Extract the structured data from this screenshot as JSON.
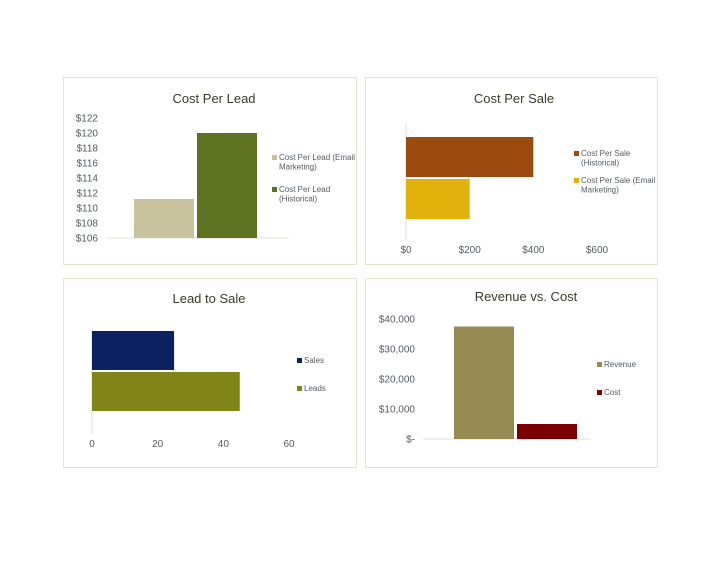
{
  "chart_data": [
    {
      "id": "cpl",
      "type": "bar",
      "title": "Cost Per Lead",
      "orientation": "vertical",
      "ylim": [
        106,
        122
      ],
      "yticks": [
        106,
        108,
        110,
        112,
        114,
        116,
        118,
        120,
        122
      ],
      "ytick_labels": [
        "$106",
        "$108",
        "$110",
        "$112",
        "$114",
        "$116",
        "$118",
        "$120",
        "$122"
      ],
      "grid": false,
      "legend_position": "right",
      "series": [
        {
          "name_lines": [
            "Cost Per Lead (Email",
            "Marketing)"
          ],
          "color": "#c8c29e",
          "values": [
            111.2
          ]
        },
        {
          "name_lines": [
            "Cost Per Lead",
            "(Historical)"
          ],
          "color": "#5f7222",
          "values": [
            120
          ]
        }
      ]
    },
    {
      "id": "cps",
      "type": "bar",
      "title": "Cost Per Sale",
      "orientation": "horizontal",
      "xlim": [
        0,
        600
      ],
      "xticks": [
        0,
        200,
        400,
        600
      ],
      "xtick_labels": [
        "$0",
        "$200",
        "$400",
        "$600"
      ],
      "grid": false,
      "legend_position": "right",
      "series": [
        {
          "name_lines": [
            "Cost Per Sale",
            "(Historical)"
          ],
          "color": "#9b4a10",
          "values": [
            400
          ]
        },
        {
          "name_lines": [
            "Cost Per Sale (Email",
            "Marketing)"
          ],
          "color": "#e2b20c",
          "values": [
            200
          ]
        }
      ]
    },
    {
      "id": "lts",
      "type": "bar",
      "title": "Lead to Sale",
      "orientation": "horizontal",
      "xlim": [
        0,
        60
      ],
      "xticks": [
        0,
        20,
        40,
        60
      ],
      "xtick_labels": [
        "0",
        "20",
        "40",
        "60"
      ],
      "grid": false,
      "legend_position": "right",
      "series": [
        {
          "name_lines": [
            "Sales"
          ],
          "color": "#0c2260",
          "values": [
            25
          ]
        },
        {
          "name_lines": [
            "Leads"
          ],
          "color": "#818417",
          "values": [
            45
          ]
        }
      ]
    },
    {
      "id": "rvc",
      "type": "bar",
      "title": "Revenue vs. Cost",
      "orientation": "vertical",
      "ylim": [
        0,
        40000
      ],
      "yticks": [
        0,
        10000,
        20000,
        30000,
        40000
      ],
      "ytick_labels": [
        "$-",
        "$10,000",
        "$20,000",
        "$30,000",
        "$40,000"
      ],
      "grid": false,
      "legend_position": "right",
      "series": [
        {
          "name_lines": [
            "Revenue"
          ],
          "color": "#958a52",
          "values": [
            37500
          ]
        },
        {
          "name_lines": [
            "Cost"
          ],
          "color": "#7c0000",
          "values": [
            5000
          ]
        }
      ]
    }
  ]
}
